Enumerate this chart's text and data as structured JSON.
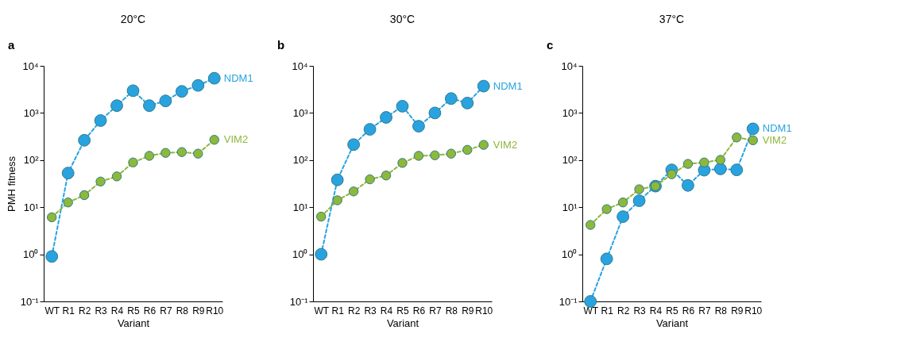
{
  "chart_data": [
    {
      "type": "line",
      "title": "20°C",
      "annotations": [
        "a"
      ],
      "xlabel": "Variant",
      "ylabel": "PMH fitness",
      "categories": [
        "WT",
        "R1",
        "R2",
        "R3",
        "R4",
        "R5",
        "R6",
        "R7",
        "R8",
        "R9",
        "R10"
      ],
      "log": "y",
      "ylim": [
        0.1,
        10000
      ],
      "yticks": [
        {
          "value": 0.1,
          "label": "10⁻¹"
        },
        {
          "value": 1,
          "label": "10⁰"
        },
        {
          "value": 10,
          "label": "10¹"
        },
        {
          "value": 100,
          "label": "10²"
        },
        {
          "value": 1000,
          "label": "10³"
        },
        {
          "value": 10000,
          "label": "10⁴"
        }
      ],
      "marker": "circle",
      "line_style": "dashed",
      "grid": false,
      "legend": false,
      "series": [
        {
          "name": "NDM1",
          "color": "#29a3e0",
          "values": [
            0.9,
            53,
            263,
            690,
            1430,
            2970,
            1430,
            1800,
            2870,
            3840,
            5450
          ]
        },
        {
          "name": "VIM2",
          "color": "#8db83a",
          "values": [
            6.1,
            12.6,
            18,
            35,
            45,
            89,
            123,
            142,
            148,
            137,
            269
          ]
        }
      ]
    },
    {
      "type": "line",
      "title": "30°C",
      "annotations": [
        "b"
      ],
      "xlabel": "Variant",
      "categories": [
        "WT",
        "R1",
        "R2",
        "R3",
        "R4",
        "R5",
        "R6",
        "R7",
        "R8",
        "R9",
        "R10"
      ],
      "log": "y",
      "ylim": [
        0.1,
        10000
      ],
      "yticks": [
        {
          "value": 0.1,
          "label": "10⁻¹"
        },
        {
          "value": 1,
          "label": "10⁰"
        },
        {
          "value": 10,
          "label": "10¹"
        },
        {
          "value": 100,
          "label": "10²"
        },
        {
          "value": 1000,
          "label": "10³"
        },
        {
          "value": 10000,
          "label": "10⁴"
        }
      ],
      "marker": "circle",
      "line_style": "dashed",
      "grid": false,
      "legend": false,
      "series": [
        {
          "name": "NDM1",
          "color": "#29a3e0",
          "values": [
            1.0,
            38,
            213,
            449,
            805,
            1390,
            523,
            1000,
            2020,
            1620,
            3710
          ]
        },
        {
          "name": "VIM2",
          "color": "#8db83a",
          "values": [
            6.3,
            14,
            21.6,
            39,
            47,
            87,
            123,
            126,
            137,
            165,
            210
          ]
        }
      ]
    },
    {
      "type": "line",
      "title": "37°C",
      "annotations": [
        "c"
      ],
      "xlabel": "Variant",
      "categories": [
        "WT",
        "R1",
        "R2",
        "R3",
        "R4",
        "R5",
        "R6",
        "R7",
        "R8",
        "R9",
        "R10"
      ],
      "log": "y",
      "ylim": [
        0.1,
        10000
      ],
      "yticks": [
        {
          "value": 0.1,
          "label": "10⁻¹"
        },
        {
          "value": 1,
          "label": "10⁰"
        },
        {
          "value": 10,
          "label": "10¹"
        },
        {
          "value": 100,
          "label": "10²"
        },
        {
          "value": 1000,
          "label": "10³"
        },
        {
          "value": 10000,
          "label": "10⁴"
        }
      ],
      "marker": "circle",
      "line_style": "dashed",
      "grid": false,
      "legend": false,
      "series": [
        {
          "name": "NDM1",
          "color": "#29a3e0",
          "values": [
            0.1,
            0.8,
            6.3,
            13.7,
            28,
            62,
            29,
            61,
            65,
            62,
            460
          ]
        },
        {
          "name": "VIM2",
          "color": "#8db83a",
          "values": [
            4.2,
            9.1,
            12.6,
            24,
            28,
            50,
            83,
            89,
            101,
            302,
            263
          ]
        }
      ]
    }
  ]
}
